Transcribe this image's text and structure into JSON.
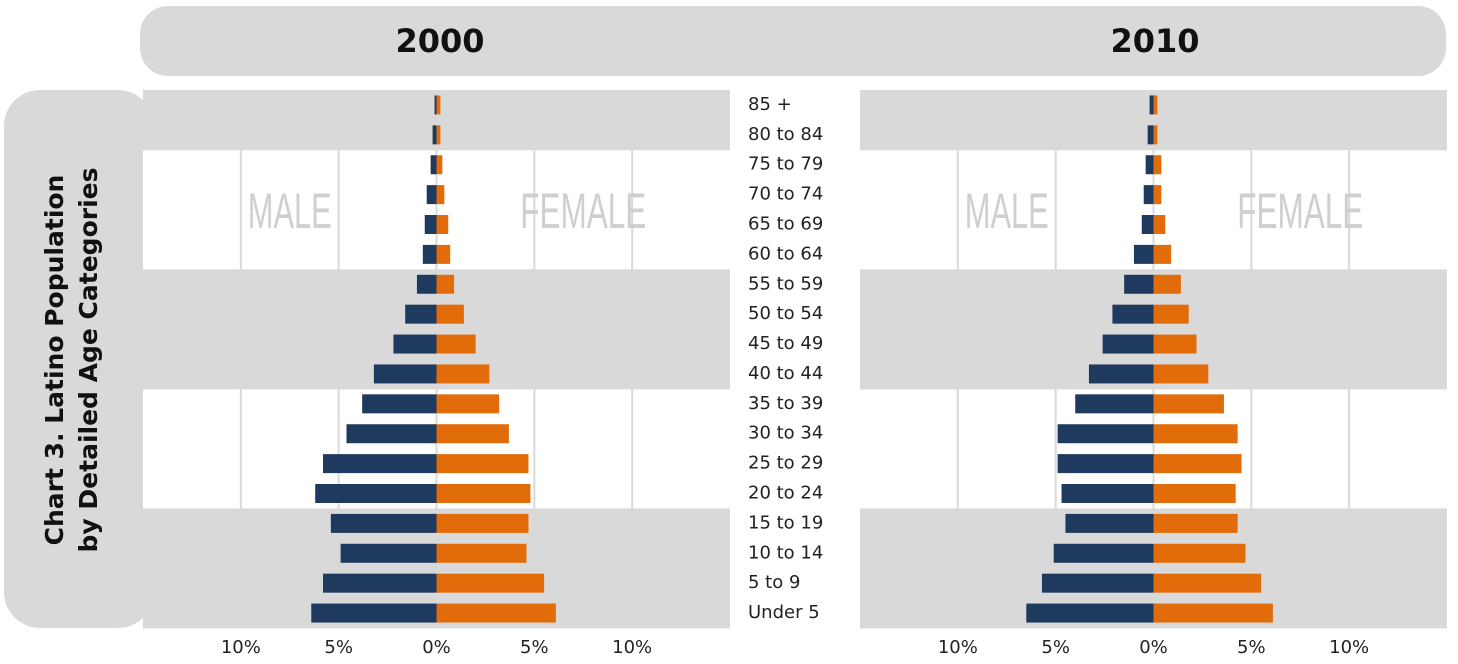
{
  "title": [
    "Chart 3. Latino Population",
    "by Detailed Age Categories"
  ],
  "chart_data": [
    {
      "type": "pyramid",
      "title": "2000",
      "categories": [
        "Under 5",
        "5 to 9",
        "10 to 14",
        "15 to 19",
        "20 to 24",
        "25 to 29",
        "30 to 34",
        "35 to 39",
        "40 to 44",
        "45 to 49",
        "50 to 54",
        "55 to 59",
        "60 to 64",
        "65 to 69",
        "70 to 74",
        "75 to 79",
        "80 to 84",
        "85 +"
      ],
      "series": [
        {
          "name": "MALE",
          "color": "#1f3a5f",
          "values": [
            -6.4,
            -5.8,
            -4.9,
            -5.4,
            -6.2,
            -5.8,
            -4.6,
            -3.8,
            -3.2,
            -2.2,
            -1.6,
            -1.0,
            -0.7,
            -0.6,
            -0.5,
            -0.3,
            -0.2,
            -0.1
          ]
        },
        {
          "name": "FEMALE",
          "color": "#e36c0a",
          "values": [
            6.1,
            5.5,
            4.6,
            4.7,
            4.8,
            4.7,
            3.7,
            3.2,
            2.7,
            2.0,
            1.4,
            0.9,
            0.7,
            0.6,
            0.4,
            0.3,
            0.2,
            0.2
          ]
        }
      ],
      "xlim": [
        -15,
        15
      ],
      "xticks": [
        {
          "value": -10,
          "label": "10%"
        },
        {
          "value": -5,
          "label": "5%"
        },
        {
          "value": 0,
          "label": "0%"
        },
        {
          "value": 5,
          "label": "5%"
        },
        {
          "value": 10,
          "label": "10%"
        }
      ],
      "grid": true
    },
    {
      "type": "pyramid",
      "title": "2010",
      "series": [
        {
          "name": "MALE",
          "color": "#1f3a5f",
          "values": [
            -6.5,
            -5.7,
            -5.1,
            -4.5,
            -4.7,
            -4.9,
            -4.9,
            -4.0,
            -3.3,
            -2.6,
            -2.1,
            -1.5,
            -1.0,
            -0.6,
            -0.5,
            -0.4,
            -0.3,
            -0.2
          ]
        },
        {
          "name": "FEMALE",
          "color": "#e36c0a",
          "values": [
            6.1,
            5.5,
            4.7,
            4.3,
            4.2,
            4.5,
            4.3,
            3.6,
            2.8,
            2.2,
            1.8,
            1.4,
            0.9,
            0.6,
            0.4,
            0.4,
            0.2,
            0.2
          ]
        }
      ],
      "xlim": [
        -15,
        15
      ],
      "xticks": [
        {
          "value": -10,
          "label": "10%"
        },
        {
          "value": -5,
          "label": "5%"
        },
        {
          "value": 0,
          "label": "0%"
        },
        {
          "value": 5,
          "label": "5%"
        },
        {
          "value": 10,
          "label": "10%"
        }
      ],
      "grid": true
    }
  ]
}
